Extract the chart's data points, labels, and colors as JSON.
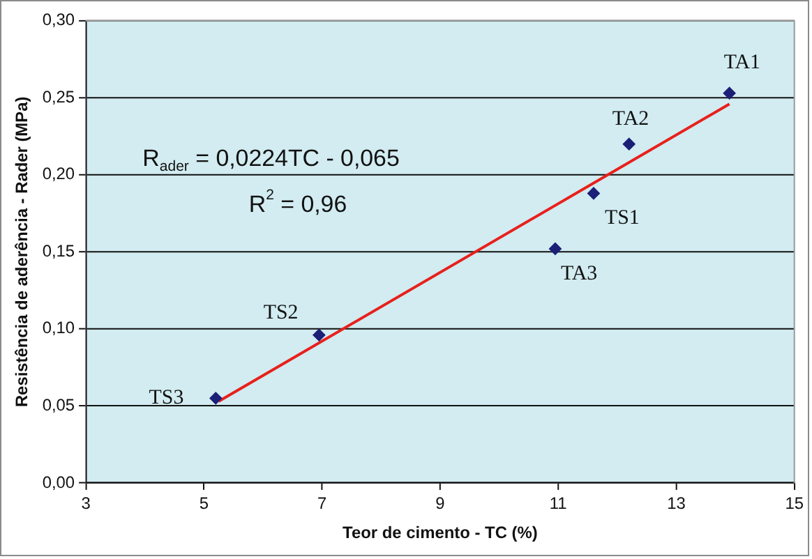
{
  "chart_data": {
    "type": "scatter",
    "xlabel": "Teor de cimento - TC (%)",
    "ylabel": "Resistência de aderência - Rader (MPa)",
    "x": [
      5.2,
      6.95,
      10.95,
      11.6,
      12.2,
      13.9
    ],
    "series": [
      {
        "color": "#1c1f78",
        "values": [
          0.055,
          0.096,
          0.152,
          0.188,
          0.22,
          0.253
        ],
        "marker": "diamond"
      },
      {
        "type": "line",
        "color": "#e8201c",
        "x": [
          5.25,
          13.9
        ],
        "values": [
          0.053,
          0.246
        ],
        "marker": "none",
        "line_style": "solid"
      }
    ],
    "xlim": [
      3,
      15
    ],
    "xticks": [
      3,
      5,
      7,
      9,
      11,
      13,
      15
    ],
    "ylim": [
      0,
      0.3
    ],
    "yticks": [
      {
        "value": 0,
        "label": "0,00"
      },
      {
        "value": 0.05,
        "label": "0,05"
      },
      {
        "value": 0.1,
        "label": "0,10"
      },
      {
        "value": 0.15,
        "label": "0,15"
      },
      {
        "value": 0.2,
        "label": "0,20"
      },
      {
        "value": 0.25,
        "label": "0,25"
      },
      {
        "value": 0.3,
        "label": "0,30"
      }
    ],
    "grid": "y",
    "legend": false,
    "annotations": [
      "R$_{ader}$ = 0,0224TC - 0,065",
      "R$^{2}$ = 0,96",
      {
        "text": "TS3",
        "x": 5.2,
        "y": 0.055
      },
      {
        "text": "TS2",
        "x": 6.95,
        "y": 0.096
      },
      {
        "text": "TA3",
        "x": 10.95,
        "y": 0.152
      },
      {
        "text": "TS1",
        "x": 11.6,
        "y": 0.188
      },
      {
        "text": "TA2",
        "x": 12.2,
        "y": 0.22
      },
      {
        "text": "TA1",
        "x": 13.9,
        "y": 0.253
      }
    ]
  }
}
